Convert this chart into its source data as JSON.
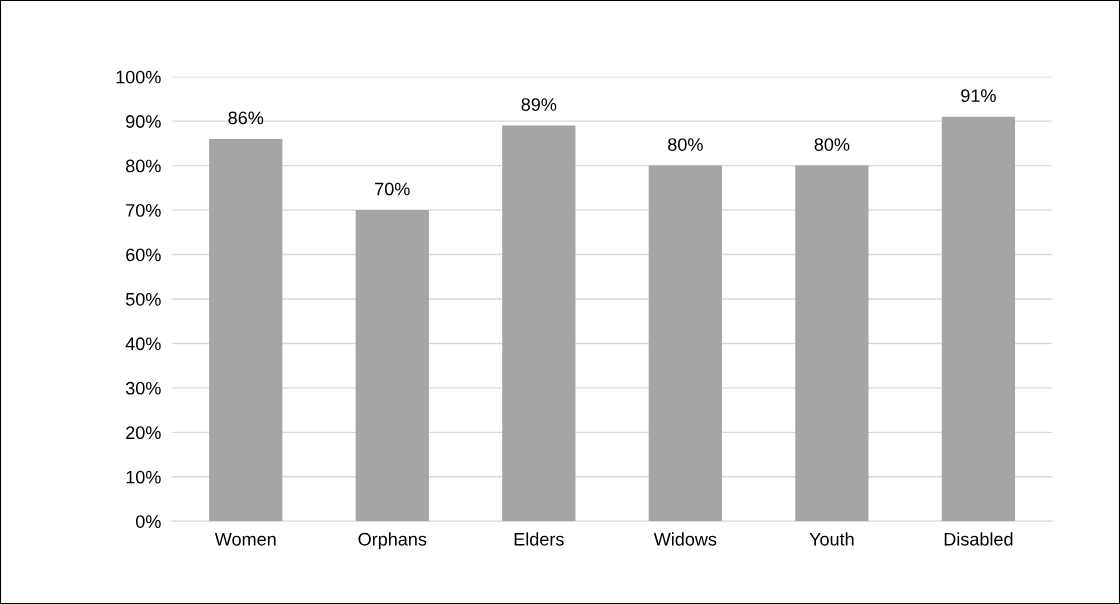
{
  "chart_data": {
    "type": "bar",
    "categories": [
      "Women",
      "Orphans",
      "Elders",
      "Widows",
      "Youth",
      "Disabled"
    ],
    "values": [
      86,
      70,
      89,
      80,
      80,
      91
    ],
    "value_labels": [
      "86%",
      "70%",
      "89%",
      "80%",
      "80%",
      "91%"
    ],
    "color": "#a5a5a5",
    "ylim": [
      0,
      100
    ],
    "yticks": [
      {
        "value": 0,
        "label": "0%"
      },
      {
        "value": 10,
        "label": "10%"
      },
      {
        "value": 20,
        "label": "20%"
      },
      {
        "value": 30,
        "label": "30%"
      },
      {
        "value": 40,
        "label": "40%"
      },
      {
        "value": 50,
        "label": "50%"
      },
      {
        "value": 60,
        "label": "60%"
      },
      {
        "value": 70,
        "label": "70%"
      },
      {
        "value": 80,
        "label": "80%"
      },
      {
        "value": 90,
        "label": "90%"
      },
      {
        "value": 100,
        "label": "100%"
      }
    ],
    "grid": "y",
    "legend": false
  }
}
